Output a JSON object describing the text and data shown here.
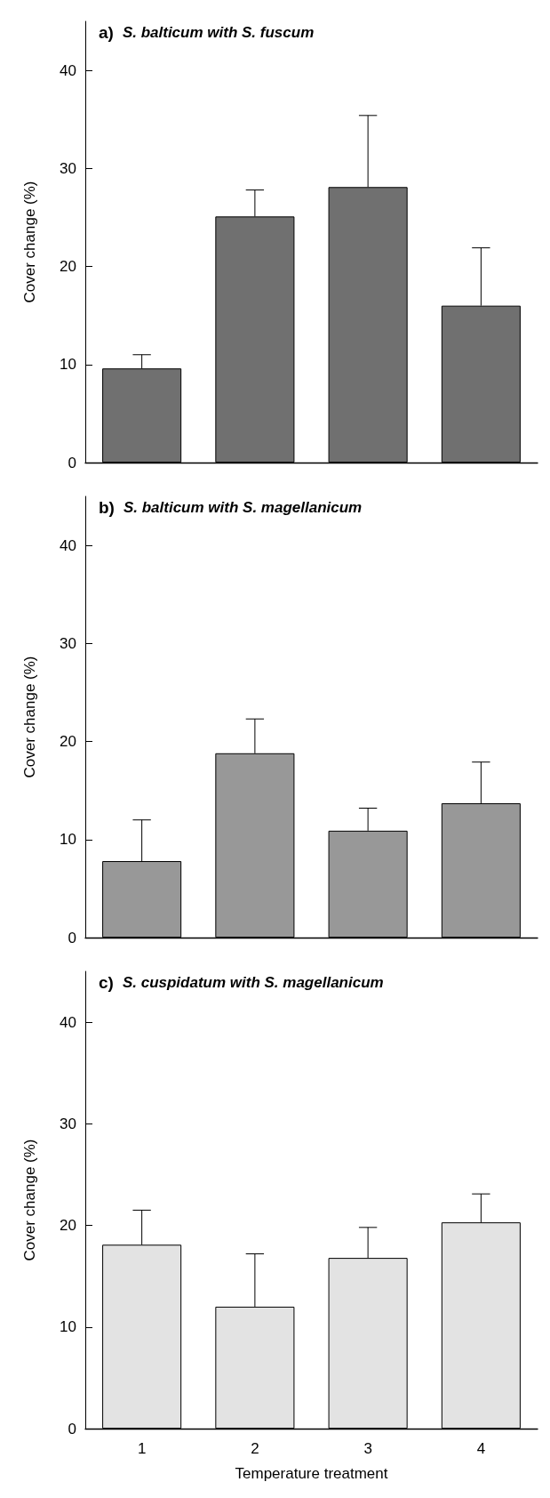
{
  "chart_data": [
    {
      "type": "bar",
      "title": "a) S. balticum with S. fuscum",
      "ylabel": "Cover change (%)",
      "categories": [
        "1",
        "2",
        "3",
        "4"
      ],
      "values": [
        9.6,
        25.1,
        28.1,
        16.0
      ],
      "errors": [
        1.4,
        2.7,
        7.3,
        5.9
      ],
      "color": "#707070",
      "ylim": [
        0,
        45
      ],
      "yticks": [
        0,
        10,
        20,
        30,
        40
      ],
      "grid": false,
      "tick_labels": "y"
    },
    {
      "type": "bar",
      "title": "b) S. balticum with S. magellanicum",
      "ylabel": "Cover change (%)",
      "categories": [
        "1",
        "2",
        "3",
        "4"
      ],
      "values": [
        7.8,
        18.8,
        10.9,
        13.7
      ],
      "errors": [
        4.2,
        3.5,
        2.3,
        4.2
      ],
      "color": "#989898",
      "ylim": [
        0,
        45
      ],
      "yticks": [
        0,
        10,
        20,
        30,
        40
      ],
      "grid": false,
      "tick_labels": "y"
    },
    {
      "type": "bar",
      "title": "c) S. cuspidatum with S. magellanicum",
      "xlabel": "Temperature treatment",
      "ylabel": "Cover change (%)",
      "categories": [
        "1",
        "2",
        "3",
        "4"
      ],
      "values": [
        18.1,
        12.0,
        16.8,
        20.3
      ],
      "errors": [
        3.4,
        5.2,
        3.0,
        2.8
      ],
      "color": "#e3e3e3",
      "ylim": [
        0,
        45
      ],
      "yticks": [
        0,
        10,
        20,
        30,
        40
      ],
      "grid": false
    }
  ]
}
